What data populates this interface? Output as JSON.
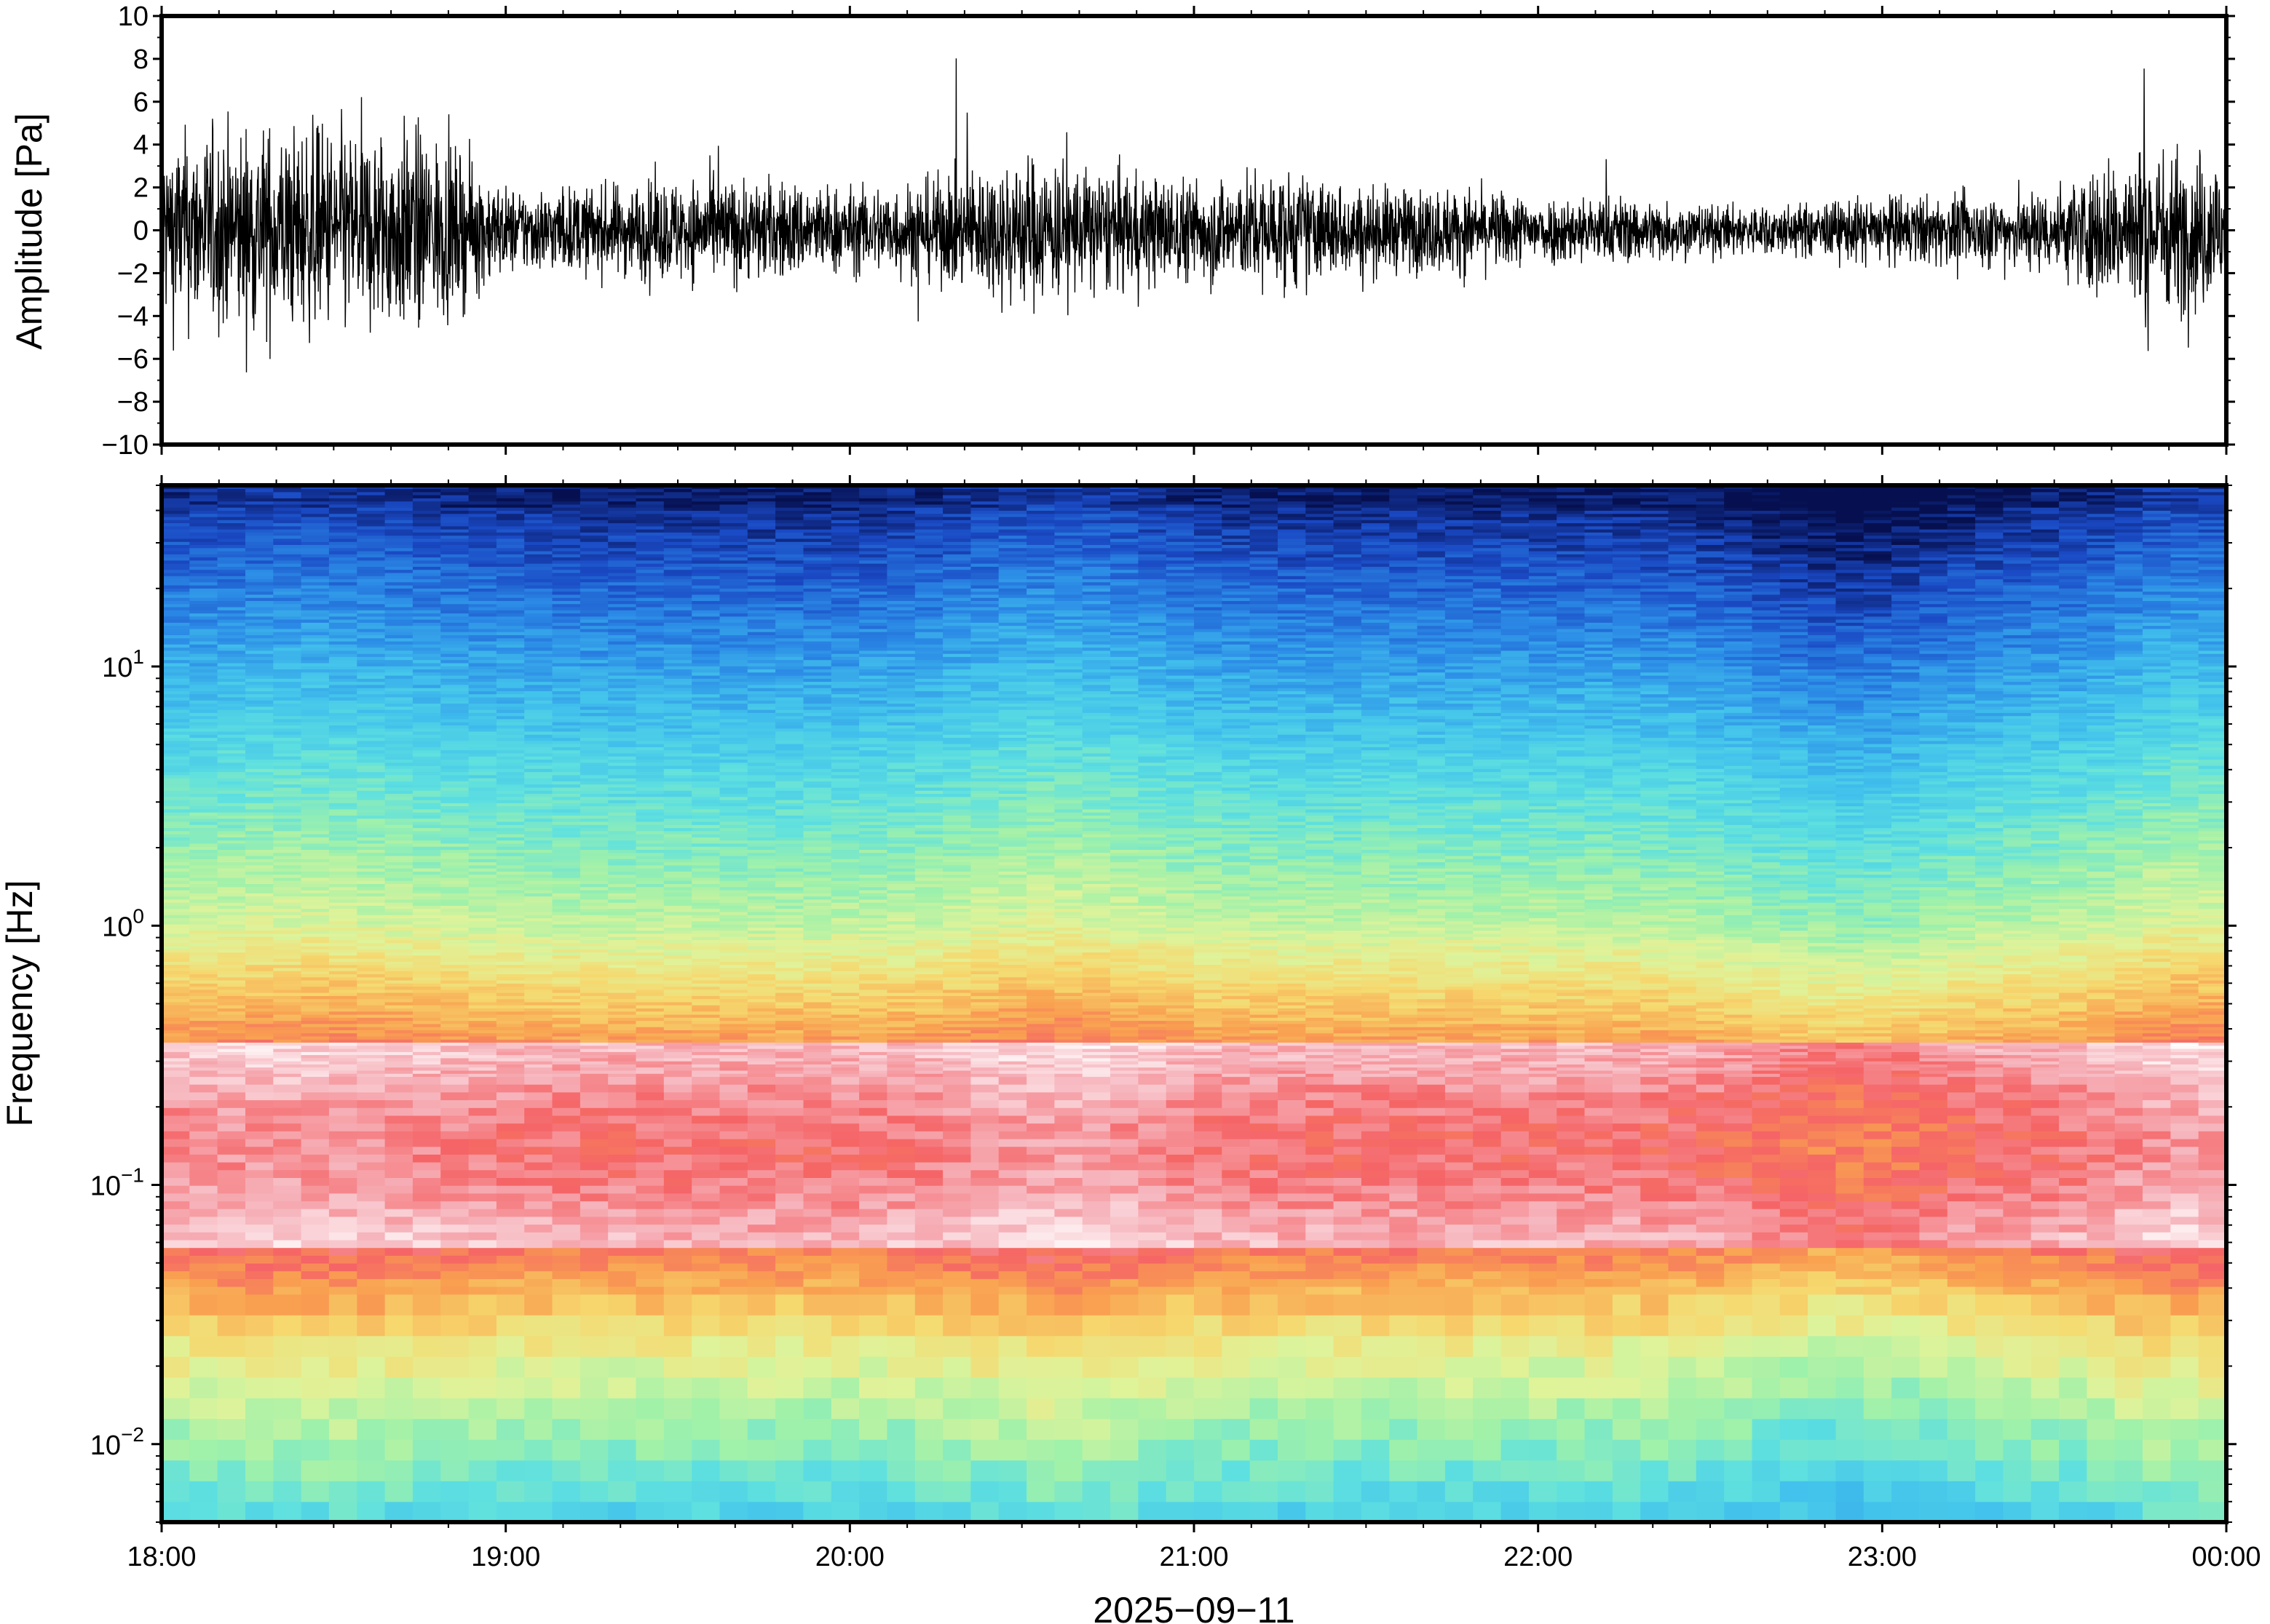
{
  "chart_data": [
    {
      "id": "waveform",
      "type": "line",
      "ylabel": "Amplitude [Pa]",
      "ylim": [
        -10,
        10
      ],
      "yticks": [
        10,
        8,
        6,
        4,
        2,
        0,
        -2,
        -4,
        -6,
        -8,
        -10
      ],
      "ytick_labels": [
        "10",
        "8",
        "6",
        "4",
        "2",
        "0",
        "−2",
        "−4",
        "−6",
        "−8",
        "−10"
      ],
      "xlim": [
        "2025-09-11 18:00",
        "2025-09-12 00:00"
      ],
      "series": [
        {
          "color": "#000000",
          "envelope_times_h": [
            18.0,
            18.25,
            18.5,
            18.75,
            19.0,
            19.25,
            19.5,
            19.75,
            20.0,
            20.25,
            20.5,
            20.75,
            21.0,
            21.25,
            21.5,
            21.75,
            22.0,
            22.25,
            22.5,
            22.75,
            23.0,
            23.25,
            23.5,
            23.75,
            24.0
          ],
          "envelope_pa": [
            5.5,
            6.0,
            6.0,
            6.0,
            2.5,
            2.5,
            3.0,
            3.0,
            2.5,
            3.0,
            4.5,
            3.5,
            3.0,
            3.5,
            2.5,
            2.5,
            2.0,
            2.0,
            1.5,
            1.5,
            2.0,
            2.0,
            2.5,
            5.0,
            4.5
          ]
        }
      ]
    },
    {
      "id": "spectrogram",
      "type": "heatmap",
      "ylabel": "Frequency [Hz]",
      "xlabel": "2025−09−11",
      "yscale": "log",
      "ylim": [
        0.005,
        50
      ],
      "yticks": [
        10,
        1,
        0.1,
        0.01
      ],
      "ytick_labels": [
        {
          "base": "10",
          "exp": "1"
        },
        {
          "base": "10",
          "exp": "0"
        },
        {
          "base": "10",
          "exp": "−1"
        },
        {
          "base": "10",
          "exp": "−2"
        }
      ],
      "xticks_h": [
        18,
        19,
        20,
        21,
        22,
        23,
        24
      ],
      "xtick_labels": [
        "18:00",
        "19:00",
        "20:00",
        "21:00",
        "22:00",
        "23:00",
        "00:00"
      ],
      "colormap": [
        "#ffffff",
        "#f6b4bc",
        "#f56466",
        "#f9a050",
        "#f6d86e",
        "#dff39a",
        "#9ff1aa",
        "#5ee0e0",
        "#42c2ec",
        "#2b8ae6",
        "#1a49c4",
        "#061050"
      ]
    }
  ]
}
